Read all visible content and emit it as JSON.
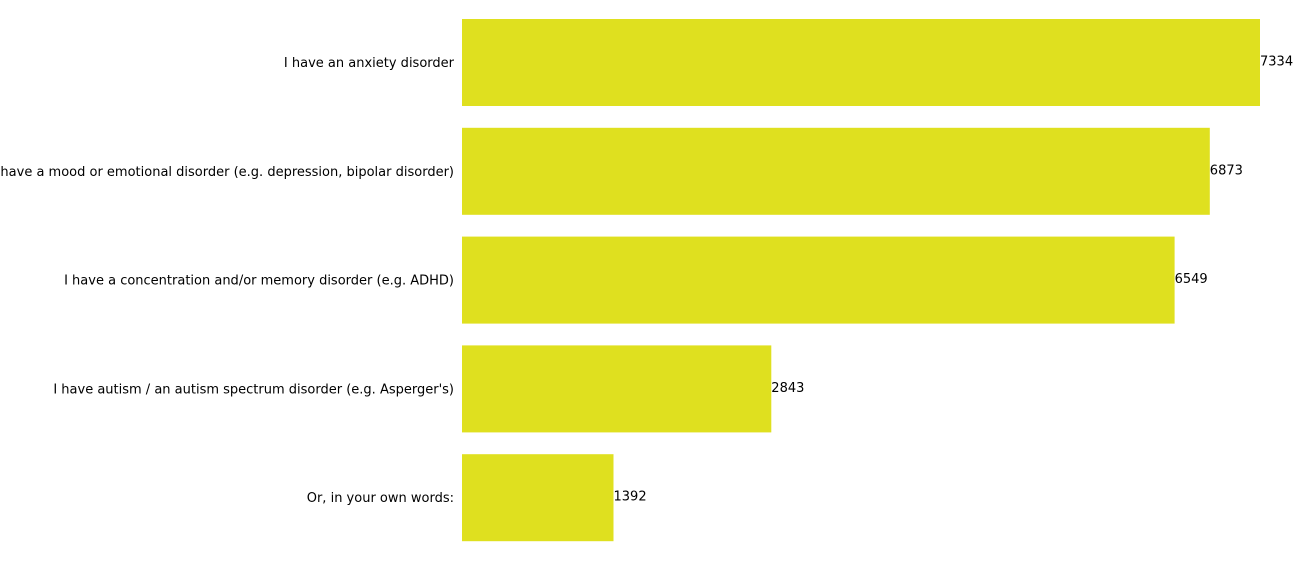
{
  "chart_data": {
    "type": "bar",
    "orientation": "horizontal",
    "categories": [
      "I have an anxiety disorder",
      "I have a mood or emotional disorder (e.g. depression, bipolar disorder)",
      "I have a concentration and/or memory disorder (e.g. ADHD)",
      "I have autism / an autism spectrum disorder (e.g. Asperger's)",
      "Or, in your own words:"
    ],
    "values": [
      7334,
      6873,
      6549,
      2843,
      1392
    ],
    "data_labels": [
      "7334",
      "6873",
      "6549",
      "2843",
      "1392"
    ],
    "title": "",
    "xlabel": "",
    "ylabel": "",
    "xlim": [
      0,
      7334
    ],
    "bar_color": "#dfe01f",
    "grid": false,
    "legend": "none"
  }
}
